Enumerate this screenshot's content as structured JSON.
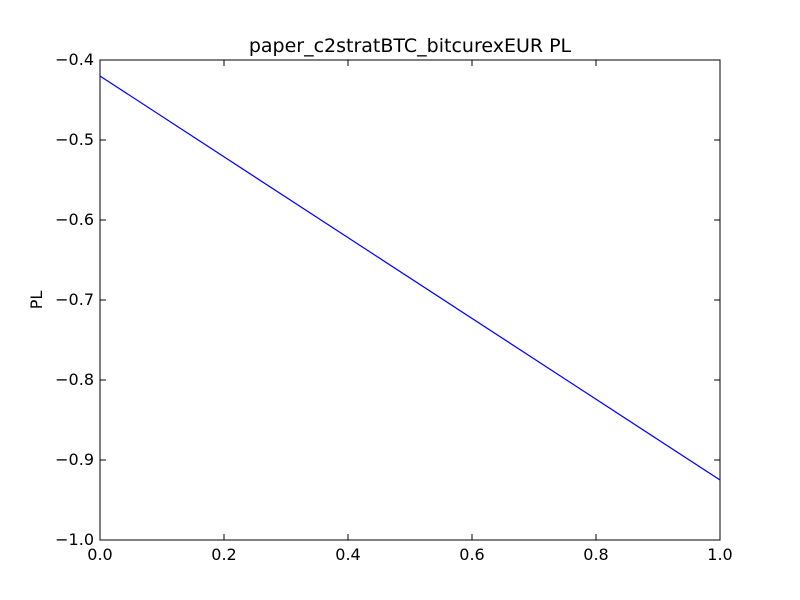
{
  "chart_data": {
    "type": "line",
    "title": "paper_c2stratBTC_bitcurexEUR PL",
    "xlabel": "",
    "ylabel": "PL",
    "xlim": [
      0.0,
      1.0
    ],
    "ylim": [
      -1.0,
      -0.4
    ],
    "x_ticks": [
      0.0,
      0.2,
      0.4,
      0.6,
      0.8,
      1.0
    ],
    "x_tick_labels": [
      "0.0",
      "0.2",
      "0.4",
      "0.6",
      "0.8",
      "1.0"
    ],
    "y_ticks": [
      -0.4,
      -0.5,
      -0.6,
      -0.7,
      -0.8,
      -0.9,
      -1.0
    ],
    "y_tick_labels": [
      "−0.4",
      "−0.5",
      "−0.6",
      "−0.7",
      "−0.8",
      "−0.9",
      "−1.0"
    ],
    "grid": false,
    "series": [
      {
        "color": "#0000ff",
        "x": [
          0.0,
          1.0
        ],
        "y": [
          -0.42,
          -0.925
        ]
      }
    ]
  }
}
